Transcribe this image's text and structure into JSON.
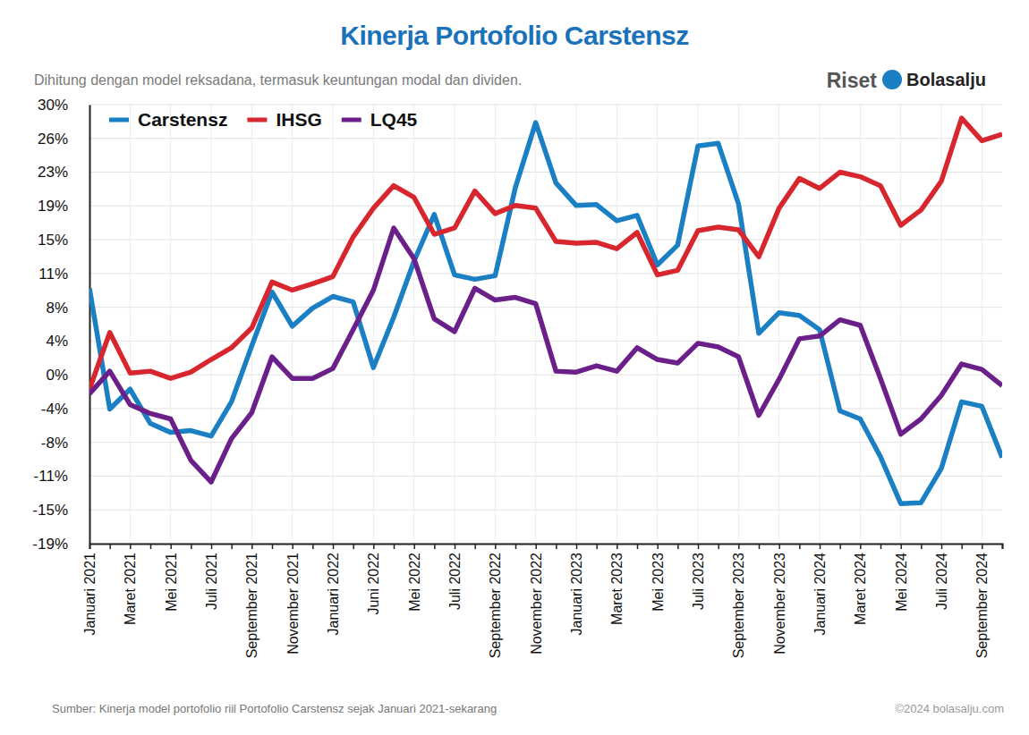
{
  "chart_data": {
    "type": "line",
    "title": "Kinerja Portofolio Carstensz",
    "subtitle": "Dihitung dengan model reksadana, termasuk keuntungan modal dan dividen.",
    "logo": {
      "prefix": "Riset",
      "name": "Bolasalju"
    },
    "source": "Sumber: Kinerja model portofolio riil Portofolio Carstensz sejak Januari 2021-sekarang",
    "copyright": "©2024 bolasalju.com",
    "categories": [
      "Januari 2021",
      null,
      "Maret 2021",
      null,
      "Mei 2021",
      null,
      "Juli 2021",
      null,
      "September 2021",
      null,
      "November 2021",
      null,
      "Januari 2022",
      null,
      "Juni 2022",
      null,
      "Mei 2022",
      null,
      "Juli 2022",
      null,
      "September 2022",
      null,
      "November 2022",
      null,
      "Januari 2023",
      null,
      "Maret 2023",
      null,
      "Mei 2023",
      null,
      "Juli 2023",
      null,
      "September 2023",
      null,
      "November 2023",
      null,
      "Januari 2024",
      null,
      "Maret 2024",
      null,
      "Mei 2024",
      null,
      "Juli 2024",
      null,
      "September 2024",
      null
    ],
    "series": [
      {
        "name": "Carstensz",
        "color": "#1b7fc4",
        "values": [
          9.6,
          -3.8,
          -1.6,
          -5.4,
          -6.4,
          -6.2,
          -6.8,
          -3.0,
          3.2,
          9.2,
          5.4,
          7.4,
          8.7,
          8.1,
          0.8,
          6.4,
          12.6,
          17.8,
          11.1,
          10.6,
          11.0,
          20.8,
          28.0,
          21.3,
          18.8,
          18.9,
          17.1,
          17.7,
          12.2,
          14.4,
          25.4,
          25.7,
          19.0,
          4.6,
          6.9,
          6.6,
          5.0,
          -4.0,
          -4.9,
          -9.1,
          -14.3,
          -14.2,
          -10.4,
          -3.0,
          -3.5,
          -9.2
        ]
      },
      {
        "name": "IHSG",
        "color": "#d7262e",
        "values": [
          -1.6,
          4.7,
          0.2,
          0.4,
          -0.4,
          0.3,
          1.7,
          3.0,
          5.2,
          10.3,
          9.4,
          10.1,
          10.9,
          15.3,
          18.5,
          21.0,
          19.7,
          15.6,
          16.3,
          20.4,
          17.9,
          18.8,
          18.5,
          14.8,
          14.6,
          14.7,
          14.0,
          15.8,
          11.1,
          11.6,
          16.0,
          16.4,
          16.1,
          13.1,
          18.5,
          21.8,
          20.7,
          22.5,
          22.0,
          21.0,
          16.6,
          18.3,
          21.5,
          28.5,
          26.0,
          26.7
        ]
      },
      {
        "name": "LQ45",
        "color": "#6b2089",
        "values": [
          -2.1,
          0.4,
          -3.3,
          -4.3,
          -4.9,
          -9.5,
          -11.9,
          -7.1,
          -4.2,
          2.0,
          -0.4,
          -0.4,
          0.7,
          5.0,
          9.4,
          16.3,
          12.9,
          6.2,
          4.8,
          9.6,
          8.3,
          8.6,
          7.9,
          0.4,
          0.3,
          1.0,
          0.4,
          3.0,
          1.7,
          1.3,
          3.5,
          3.1,
          2.0,
          -4.5,
          -0.5,
          4.0,
          4.3,
          6.1,
          5.5,
          -0.4,
          -6.6,
          -4.9,
          -2.3,
          1.2,
          0.6,
          -1.2
        ]
      }
    ],
    "ylim": [
      -18.75,
      30
    ],
    "yticks": [
      {
        "value": 30,
        "label": "30%"
      },
      {
        "value": 26.25,
        "label": "26%"
      },
      {
        "value": 22.5,
        "label": "23%"
      },
      {
        "value": 18.75,
        "label": "19%"
      },
      {
        "value": 15,
        "label": "15%"
      },
      {
        "value": 11.25,
        "label": "11%"
      },
      {
        "value": 7.5,
        "label": "8%"
      },
      {
        "value": 3.75,
        "label": "4%"
      },
      {
        "value": 0,
        "label": "0%"
      },
      {
        "value": -3.75,
        "label": "-4%"
      },
      {
        "value": -7.5,
        "label": "-8%"
      },
      {
        "value": -11.25,
        "label": "-11%"
      },
      {
        "value": -15,
        "label": "-15%"
      },
      {
        "value": -18.75,
        "label": "-19%"
      }
    ],
    "grid": true,
    "legend": "upper left"
  }
}
